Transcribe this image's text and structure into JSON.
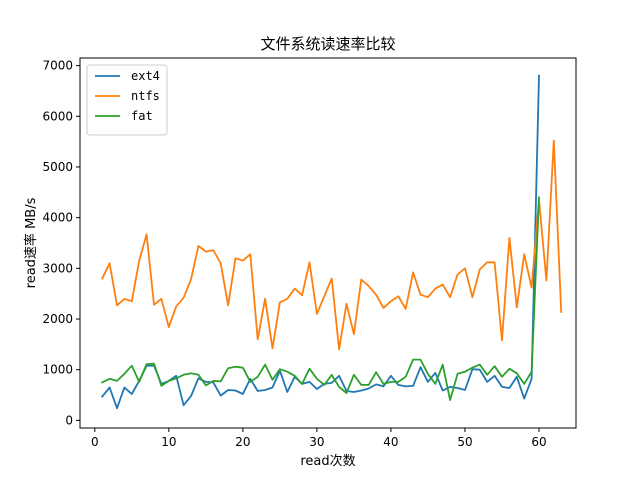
{
  "chart_data": {
    "type": "line",
    "title": "文件系统读速率比较",
    "xlabel": "read次数",
    "ylabel": "read速率 MB/s",
    "xlim": [
      -2,
      65
    ],
    "ylim": [
      -150,
      7150
    ],
    "xticks": [
      0,
      10,
      20,
      30,
      40,
      50,
      60
    ],
    "yticks": [
      0,
      1000,
      2000,
      3000,
      4000,
      5000,
      6000,
      7000
    ],
    "legend_position": "top-left",
    "grid": false,
    "series": [
      {
        "name": "ext4",
        "color": "#1f77b4",
        "x": [
          1,
          2,
          3,
          4,
          5,
          6,
          7,
          8,
          9,
          10,
          11,
          12,
          13,
          14,
          15,
          16,
          17,
          18,
          19,
          20,
          21,
          22,
          23,
          24,
          25,
          26,
          27,
          28,
          29,
          30,
          31,
          32,
          33,
          34,
          35,
          36,
          37,
          38,
          39,
          40,
          41,
          42,
          43,
          44,
          45,
          46,
          47,
          48,
          49,
          50,
          51,
          52,
          53,
          54,
          55,
          56,
          57,
          58,
          59,
          60
        ],
        "y": [
          470,
          650,
          240,
          650,
          520,
          780,
          1080,
          1080,
          720,
          780,
          880,
          300,
          480,
          830,
          760,
          750,
          490,
          600,
          590,
          520,
          820,
          580,
          600,
          650,
          980,
          560,
          860,
          720,
          760,
          620,
          720,
          740,
          880,
          580,
          560,
          590,
          630,
          710,
          670,
          880,
          700,
          670,
          680,
          1050,
          760,
          940,
          590,
          660,
          640,
          600,
          1010,
          1000,
          760,
          880,
          660,
          640,
          860,
          430,
          820,
          6800
        ]
      },
      {
        "name": "ntfs",
        "color": "#ff7f0e",
        "x": [
          1,
          2,
          3,
          4,
          5,
          6,
          7,
          8,
          9,
          10,
          11,
          12,
          13,
          14,
          15,
          16,
          17,
          18,
          19,
          20,
          21,
          22,
          23,
          24,
          25,
          26,
          27,
          28,
          29,
          30,
          31,
          32,
          33,
          34,
          35,
          36,
          37,
          38,
          39,
          40,
          41,
          42,
          43,
          44,
          45,
          46,
          47,
          48,
          49,
          50,
          51,
          52,
          53,
          54,
          55,
          56,
          57,
          58,
          59,
          60,
          61,
          62,
          63
        ],
        "y": [
          2800,
          3100,
          2270,
          2400,
          2350,
          3150,
          3670,
          2280,
          2400,
          1840,
          2250,
          2420,
          2780,
          3440,
          3330,
          3360,
          3100,
          2270,
          3200,
          3150,
          3280,
          1600,
          2400,
          1420,
          2330,
          2400,
          2600,
          2470,
          3120,
          2100,
          2450,
          2800,
          1400,
          2300,
          1700,
          2780,
          2650,
          2480,
          2220,
          2350,
          2450,
          2200,
          2920,
          2480,
          2430,
          2600,
          2680,
          2430,
          2880,
          3000,
          2430,
          2980,
          3120,
          3120,
          1580,
          3600,
          2230,
          3280,
          2620,
          4350,
          2760,
          5520,
          2140
        ]
      },
      {
        "name": "fat",
        "color": "#2ca02c",
        "x": [
          1,
          2,
          3,
          4,
          5,
          6,
          7,
          8,
          9,
          10,
          11,
          12,
          13,
          14,
          15,
          16,
          17,
          18,
          19,
          20,
          21,
          22,
          23,
          24,
          25,
          26,
          27,
          28,
          29,
          30,
          31,
          32,
          33,
          34,
          35,
          36,
          37,
          38,
          39,
          40,
          41,
          42,
          43,
          44,
          45,
          46,
          47,
          48,
          49,
          50,
          51,
          52,
          53,
          54,
          55,
          56,
          57,
          58,
          59,
          60
        ],
        "y": [
          750,
          820,
          780,
          920,
          1080,
          760,
          1110,
          1120,
          680,
          780,
          830,
          900,
          930,
          900,
          690,
          780,
          770,
          1030,
          1060,
          1040,
          760,
          860,
          1100,
          800,
          1010,
          960,
          880,
          720,
          1020,
          820,
          700,
          900,
          660,
          540,
          900,
          700,
          700,
          950,
          720,
          760,
          760,
          860,
          1200,
          1200,
          920,
          720,
          1100,
          400,
          920,
          960,
          1040,
          1100,
          900,
          1070,
          860,
          1020,
          930,
          720,
          960,
          4400
        ]
      }
    ]
  }
}
